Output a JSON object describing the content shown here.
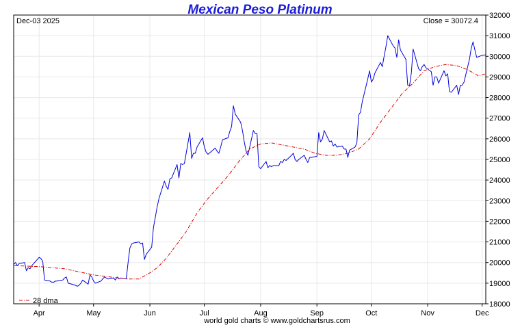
{
  "chart_data": {
    "type": "line",
    "title": "Mexican Peso Platinum",
    "date_label": "Dec-03  2025",
    "close_label": "Close = 30072.4",
    "footer": "world gold charts © www.goldchartsrus.com",
    "ylim": [
      18000,
      32000
    ],
    "yticks": [
      18000,
      19000,
      20000,
      21000,
      22000,
      23000,
      24000,
      25000,
      26000,
      27000,
      28000,
      29000,
      30000,
      31000,
      32000
    ],
    "x_range": [
      "2025-03-18",
      "2025-12-03"
    ],
    "month_ticks": [
      {
        "label": "Apr",
        "date": "2025-04-01"
      },
      {
        "label": "May",
        "date": "2025-05-01"
      },
      {
        "label": "Jun",
        "date": "2025-06-01"
      },
      {
        "label": "Jul",
        "date": "2025-07-01"
      },
      {
        "label": "Aug",
        "date": "2025-08-01"
      },
      {
        "label": "Sep",
        "date": "2025-09-01"
      },
      {
        "label": "Oct",
        "date": "2025-10-01"
      },
      {
        "label": "Nov",
        "date": "2025-11-01"
      },
      {
        "label": "Dec",
        "date": "2025-12-01"
      }
    ],
    "grid": true,
    "legend": {
      "position": "bottom-left",
      "label": "28 dma"
    },
    "colors": {
      "price": "#0000dd",
      "dma": "#dd0000",
      "title": "#1a1adb",
      "grid": "#e8e8e8"
    },
    "series": [
      {
        "name": "",
        "style": "solid",
        "points": [
          [
            "2025-03-18",
            19900
          ],
          [
            "2025-03-19",
            20000
          ],
          [
            "2025-03-20",
            19850
          ],
          [
            "2025-03-21",
            19950
          ],
          [
            "2025-03-24",
            20000
          ],
          [
            "2025-03-25",
            19600
          ],
          [
            "2025-03-26",
            19750
          ],
          [
            "2025-03-27",
            19700
          ],
          [
            "2025-03-28",
            19850
          ],
          [
            "2025-03-31",
            20150
          ],
          [
            "2025-04-01",
            20250
          ],
          [
            "2025-04-02",
            20200
          ],
          [
            "2025-04-03",
            20050
          ],
          [
            "2025-04-04",
            19150
          ],
          [
            "2025-04-07",
            19100
          ],
          [
            "2025-04-08",
            19050
          ],
          [
            "2025-04-09",
            19050
          ],
          [
            "2025-04-10",
            19100
          ],
          [
            "2025-04-11",
            19100
          ],
          [
            "2025-04-14",
            19150
          ],
          [
            "2025-04-15",
            19250
          ],
          [
            "2025-04-16",
            19300
          ],
          [
            "2025-04-17",
            19000
          ],
          [
            "2025-04-21",
            18900
          ],
          [
            "2025-04-22",
            18850
          ],
          [
            "2025-04-23",
            18900
          ],
          [
            "2025-04-24",
            19000
          ],
          [
            "2025-04-25",
            19150
          ],
          [
            "2025-04-28",
            18950
          ],
          [
            "2025-04-29",
            19400
          ],
          [
            "2025-04-30",
            19300
          ],
          [
            "2025-05-01",
            19100
          ],
          [
            "2025-05-02",
            19000
          ],
          [
            "2025-05-05",
            19100
          ],
          [
            "2025-05-06",
            19200
          ],
          [
            "2025-05-07",
            19300
          ],
          [
            "2025-05-08",
            19250
          ],
          [
            "2025-05-09",
            19200
          ],
          [
            "2025-05-12",
            19250
          ],
          [
            "2025-05-13",
            19150
          ],
          [
            "2025-05-14",
            19300
          ],
          [
            "2025-05-15",
            19200
          ],
          [
            "2025-05-16",
            19250
          ],
          [
            "2025-05-19",
            19200
          ],
          [
            "2025-05-20",
            20000
          ],
          [
            "2025-05-21",
            20700
          ],
          [
            "2025-05-22",
            20900
          ],
          [
            "2025-05-23",
            20950
          ],
          [
            "2025-05-26",
            21000
          ],
          [
            "2025-05-27",
            20900
          ],
          [
            "2025-05-28",
            20950
          ],
          [
            "2025-05-29",
            20150
          ],
          [
            "2025-05-30",
            20400
          ],
          [
            "2025-06-02",
            20750
          ],
          [
            "2025-06-03",
            21700
          ],
          [
            "2025-06-04",
            22200
          ],
          [
            "2025-06-05",
            22700
          ],
          [
            "2025-06-06",
            23100
          ],
          [
            "2025-06-09",
            23950
          ],
          [
            "2025-06-10",
            23700
          ],
          [
            "2025-06-11",
            23550
          ],
          [
            "2025-06-12",
            24050
          ],
          [
            "2025-06-13",
            24100
          ],
          [
            "2025-06-16",
            24750
          ],
          [
            "2025-06-17",
            24100
          ],
          [
            "2025-06-18",
            24800
          ],
          [
            "2025-06-19",
            24750
          ],
          [
            "2025-06-20",
            24800
          ],
          [
            "2025-06-23",
            26300
          ],
          [
            "2025-06-24",
            25050
          ],
          [
            "2025-06-25",
            25300
          ],
          [
            "2025-06-26",
            25300
          ],
          [
            "2025-06-27",
            25600
          ],
          [
            "2025-06-30",
            26050
          ],
          [
            "2025-07-01",
            25600
          ],
          [
            "2025-07-02",
            25350
          ],
          [
            "2025-07-03",
            25250
          ],
          [
            "2025-07-07",
            25550
          ],
          [
            "2025-07-08",
            25400
          ],
          [
            "2025-07-09",
            25300
          ],
          [
            "2025-07-10",
            25600
          ],
          [
            "2025-07-11",
            25950
          ],
          [
            "2025-07-14",
            26050
          ],
          [
            "2025-07-15",
            26350
          ],
          [
            "2025-07-16",
            26600
          ],
          [
            "2025-07-17",
            27600
          ],
          [
            "2025-07-18",
            27200
          ],
          [
            "2025-07-21",
            26800
          ],
          [
            "2025-07-22",
            26400
          ],
          [
            "2025-07-23",
            25850
          ],
          [
            "2025-07-24",
            25400
          ],
          [
            "2025-07-25",
            25200
          ],
          [
            "2025-07-28",
            26400
          ],
          [
            "2025-07-29",
            26250
          ],
          [
            "2025-07-30",
            26250
          ],
          [
            "2025-07-31",
            24650
          ],
          [
            "2025-08-01",
            24550
          ],
          [
            "2025-08-04",
            24900
          ],
          [
            "2025-08-05",
            24600
          ],
          [
            "2025-08-06",
            24700
          ],
          [
            "2025-08-07",
            24650
          ],
          [
            "2025-08-08",
            24700
          ],
          [
            "2025-08-11",
            24700
          ],
          [
            "2025-08-12",
            24900
          ],
          [
            "2025-08-13",
            24850
          ],
          [
            "2025-08-14",
            25000
          ],
          [
            "2025-08-15",
            24950
          ],
          [
            "2025-08-18",
            25200
          ],
          [
            "2025-08-19",
            25300
          ],
          [
            "2025-08-20",
            25000
          ],
          [
            "2025-08-21",
            24900
          ],
          [
            "2025-08-22",
            25000
          ],
          [
            "2025-08-25",
            25200
          ],
          [
            "2025-08-26",
            25000
          ],
          [
            "2025-08-27",
            24850
          ],
          [
            "2025-08-28",
            25100
          ],
          [
            "2025-08-29",
            25100
          ],
          [
            "2025-09-01",
            25150
          ],
          [
            "2025-09-02",
            26300
          ],
          [
            "2025-09-03",
            25850
          ],
          [
            "2025-09-04",
            26000
          ],
          [
            "2025-09-05",
            26400
          ],
          [
            "2025-09-08",
            25850
          ],
          [
            "2025-09-09",
            25900
          ],
          [
            "2025-09-10",
            25650
          ],
          [
            "2025-09-11",
            25750
          ],
          [
            "2025-09-12",
            25600
          ],
          [
            "2025-09-15",
            25650
          ],
          [
            "2025-09-16",
            25500
          ],
          [
            "2025-09-17",
            25500
          ],
          [
            "2025-09-18",
            25100
          ],
          [
            "2025-09-19",
            25450
          ],
          [
            "2025-09-22",
            25600
          ],
          [
            "2025-09-23",
            25800
          ],
          [
            "2025-09-24",
            27150
          ],
          [
            "2025-09-25",
            27300
          ],
          [
            "2025-09-26",
            27800
          ],
          [
            "2025-09-29",
            28900
          ],
          [
            "2025-09-30",
            29300
          ],
          [
            "2025-10-01",
            28750
          ],
          [
            "2025-10-02",
            28900
          ],
          [
            "2025-10-03",
            29200
          ],
          [
            "2025-10-06",
            29700
          ],
          [
            "2025-10-07",
            29500
          ],
          [
            "2025-10-08",
            30000
          ],
          [
            "2025-10-09",
            30450
          ],
          [
            "2025-10-10",
            31000
          ],
          [
            "2025-10-13",
            30500
          ],
          [
            "2025-10-14",
            30400
          ],
          [
            "2025-10-15",
            29950
          ],
          [
            "2025-10-16",
            30800
          ],
          [
            "2025-10-17",
            30300
          ],
          [
            "2025-10-20",
            29850
          ],
          [
            "2025-10-21",
            28600
          ],
          [
            "2025-10-22",
            28550
          ],
          [
            "2025-10-23",
            29200
          ],
          [
            "2025-10-24",
            30350
          ],
          [
            "2025-10-27",
            29400
          ],
          [
            "2025-10-28",
            29300
          ],
          [
            "2025-10-29",
            29500
          ],
          [
            "2025-10-30",
            29600
          ],
          [
            "2025-10-31",
            29450
          ],
          [
            "2025-11-03",
            29250
          ],
          [
            "2025-11-04",
            28600
          ],
          [
            "2025-11-05",
            29000
          ],
          [
            "2025-11-06",
            29000
          ],
          [
            "2025-11-07",
            28700
          ],
          [
            "2025-11-10",
            29300
          ],
          [
            "2025-11-11",
            29050
          ],
          [
            "2025-11-12",
            29150
          ],
          [
            "2025-11-13",
            28300
          ],
          [
            "2025-11-14",
            28250
          ],
          [
            "2025-11-17",
            28600
          ],
          [
            "2025-11-18",
            28150
          ],
          [
            "2025-11-19",
            28600
          ],
          [
            "2025-11-20",
            28600
          ],
          [
            "2025-11-21",
            28750
          ],
          [
            "2025-11-24",
            29850
          ],
          [
            "2025-11-25",
            30400
          ],
          [
            "2025-11-26",
            30700
          ],
          [
            "2025-11-27",
            30300
          ],
          [
            "2025-11-28",
            29950
          ],
          [
            "2025-12-01",
            30050
          ],
          [
            "2025-12-03",
            30072.4
          ]
        ]
      },
      {
        "name": "28 dma",
        "style": "dashdot",
        "points": [
          [
            "2025-03-18",
            19850
          ],
          [
            "2025-04-01",
            19800
          ],
          [
            "2025-04-15",
            19700
          ],
          [
            "2025-05-01",
            19400
          ],
          [
            "2025-05-10",
            19300
          ],
          [
            "2025-05-20",
            19200
          ],
          [
            "2025-05-26",
            19200
          ],
          [
            "2025-06-01",
            19500
          ],
          [
            "2025-06-05",
            19750
          ],
          [
            "2025-06-10",
            20200
          ],
          [
            "2025-06-16",
            20900
          ],
          [
            "2025-06-21",
            21500
          ],
          [
            "2025-06-27",
            22400
          ],
          [
            "2025-07-02",
            23000
          ],
          [
            "2025-07-08",
            23600
          ],
          [
            "2025-07-14",
            24200
          ],
          [
            "2025-07-20",
            24900
          ],
          [
            "2025-07-26",
            25500
          ],
          [
            "2025-08-01",
            25750
          ],
          [
            "2025-08-07",
            25800
          ],
          [
            "2025-08-13",
            25700
          ],
          [
            "2025-08-19",
            25600
          ],
          [
            "2025-08-25",
            25500
          ],
          [
            "2025-08-31",
            25300
          ],
          [
            "2025-09-06",
            25200
          ],
          [
            "2025-09-12",
            25200
          ],
          [
            "2025-09-18",
            25300
          ],
          [
            "2025-09-24",
            25500
          ],
          [
            "2025-09-30",
            26000
          ],
          [
            "2025-10-06",
            26800
          ],
          [
            "2025-10-12",
            27500
          ],
          [
            "2025-10-18",
            28200
          ],
          [
            "2025-10-24",
            28700
          ],
          [
            "2025-10-30",
            29300
          ],
          [
            "2025-11-05",
            29500
          ],
          [
            "2025-11-11",
            29600
          ],
          [
            "2025-11-17",
            29550
          ],
          [
            "2025-11-23",
            29350
          ],
          [
            "2025-11-29",
            29050
          ],
          [
            "2025-12-03",
            29150
          ]
        ]
      }
    ]
  }
}
